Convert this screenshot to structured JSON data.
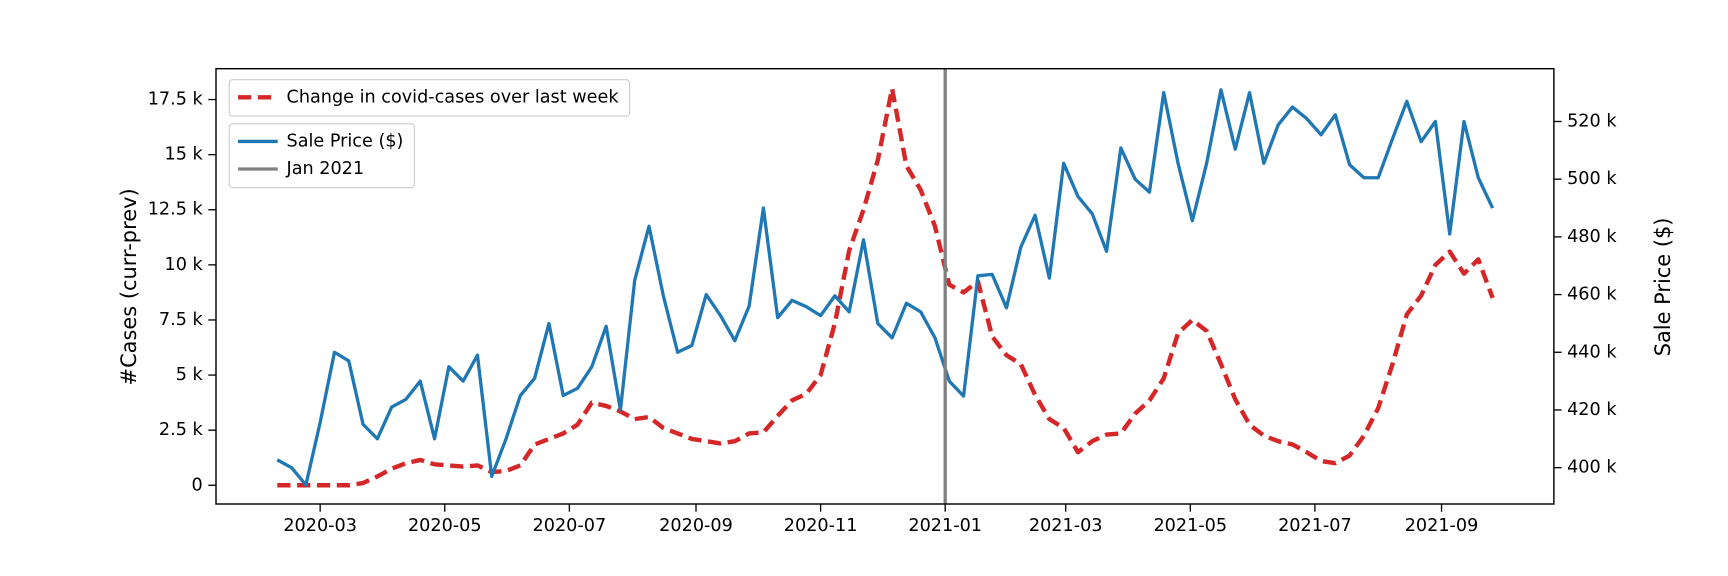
{
  "chart_data": {
    "type": "line",
    "ylabel": "#Cases (curr-prev)",
    "y2label": "Sale Price ($)",
    "x": [
      "2020-02-09",
      "2020-02-16",
      "2020-02-23",
      "2020-03-01",
      "2020-03-08",
      "2020-03-15",
      "2020-03-22",
      "2020-03-29",
      "2020-04-05",
      "2020-04-12",
      "2020-04-19",
      "2020-04-26",
      "2020-05-03",
      "2020-05-10",
      "2020-05-17",
      "2020-05-24",
      "2020-05-31",
      "2020-06-07",
      "2020-06-14",
      "2020-06-21",
      "2020-06-28",
      "2020-07-05",
      "2020-07-12",
      "2020-07-19",
      "2020-07-26",
      "2020-08-02",
      "2020-08-09",
      "2020-08-16",
      "2020-08-23",
      "2020-08-30",
      "2020-09-06",
      "2020-09-13",
      "2020-09-20",
      "2020-09-27",
      "2020-10-04",
      "2020-10-11",
      "2020-10-18",
      "2020-10-25",
      "2020-11-01",
      "2020-11-08",
      "2020-11-15",
      "2020-11-22",
      "2020-11-29",
      "2020-12-06",
      "2020-12-13",
      "2020-12-20",
      "2020-12-27",
      "2021-01-03",
      "2021-01-10",
      "2021-01-17",
      "2021-01-24",
      "2021-01-31",
      "2021-02-07",
      "2021-02-14",
      "2021-02-21",
      "2021-02-28",
      "2021-03-07",
      "2021-03-14",
      "2021-03-21",
      "2021-03-28",
      "2021-04-04",
      "2021-04-11",
      "2021-04-18",
      "2021-04-25",
      "2021-05-02",
      "2021-05-09",
      "2021-05-16",
      "2021-05-23",
      "2021-05-30",
      "2021-06-06",
      "2021-06-13",
      "2021-06-20",
      "2021-06-27",
      "2021-07-04",
      "2021-07-11",
      "2021-07-18",
      "2021-07-25",
      "2021-08-01",
      "2021-08-08",
      "2021-08-15",
      "2021-08-22",
      "2021-08-29",
      "2021-09-05",
      "2021-09-12",
      "2021-09-19",
      "2021-09-26"
    ],
    "xlim": [
      "2020-01-10",
      "2021-10-26"
    ],
    "xticks": [
      "2020-03",
      "2020-05",
      "2020-07",
      "2020-09",
      "2020-11",
      "2021-01",
      "2021-03",
      "2021-05",
      "2021-07",
      "2021-09"
    ],
    "ylim": [
      -850,
      18900
    ],
    "yticks": [
      0,
      {
        "value": 2500,
        "label": "2.5 k"
      },
      {
        "value": 5000,
        "label": "5 k"
      },
      {
        "value": 7500,
        "label": "7.5 k"
      },
      {
        "value": 10000,
        "label": "10 k"
      },
      {
        "value": 12500,
        "label": "12.5 k"
      },
      {
        "value": 15000,
        "label": "15 k"
      },
      {
        "value": 17500,
        "label": "17.5 k"
      }
    ],
    "y2lim": [
      387400,
      538300
    ],
    "y2ticks": [
      {
        "value": 400000,
        "label": "400 k"
      },
      {
        "value": 420000,
        "label": "420 k"
      },
      {
        "value": 440000,
        "label": "440 k"
      },
      {
        "value": 460000,
        "label": "460 k"
      },
      {
        "value": 480000,
        "label": "480 k"
      },
      {
        "value": 500000,
        "label": "500 k"
      },
      {
        "value": 520000,
        "label": "520 k"
      }
    ],
    "legend": "upper left",
    "series": [
      {
        "name": "Change in covid-cases over last week",
        "color": "#d62728",
        "linestyle": "dashed",
        "axis": "y",
        "values": [
          0,
          0,
          0,
          0,
          0,
          0,
          100,
          400,
          750,
          1000,
          1150,
          950,
          900,
          850,
          900,
          600,
          650,
          900,
          1850,
          2100,
          2350,
          2750,
          3750,
          3600,
          3350,
          3000,
          3100,
          2600,
          2350,
          2100,
          2000,
          1900,
          2000,
          2350,
          2400,
          3150,
          3850,
          4150,
          5000,
          7350,
          10650,
          12500,
          14750,
          18000,
          14500,
          13400,
          11750,
          9100,
          8750,
          9250,
          6750,
          5900,
          5500,
          4100,
          3000,
          2600,
          1500,
          2000,
          2300,
          2350,
          3250,
          3850,
          4850,
          6900,
          7500,
          7000,
          5500,
          3900,
          2750,
          2250,
          2000,
          1850,
          1500,
          1100,
          1000,
          1350,
          2250,
          3500,
          5500,
          7750,
          8600,
          10000,
          10600,
          9600,
          10250,
          8500
        ]
      },
      {
        "name": "Sale Price ($)",
        "color": "#1f77b4",
        "linestyle": "solid",
        "axis": "y2",
        "values": [
          402700,
          400000,
          394000,
          415700,
          440000,
          437000,
          415000,
          410000,
          421000,
          423700,
          430000,
          410000,
          435000,
          430000,
          439000,
          397000,
          410000,
          425000,
          431000,
          450000,
          425000,
          427500,
          435000,
          449000,
          420000,
          465000,
          483700,
          459600,
          440000,
          442400,
          460000,
          452700,
          444000,
          456000,
          490000,
          452000,
          458000,
          455800,
          452700,
          459600,
          454000,
          479000,
          450000,
          445000,
          457000,
          454000,
          445000,
          430000,
          424800,
          466500,
          467000,
          455400,
          476400,
          487500,
          465700,
          505500,
          494000,
          488000,
          475000,
          510800,
          500000,
          495500,
          530000,
          505500,
          485600,
          505500,
          531000,
          510400,
          530000,
          505500,
          518800,
          525000,
          521000,
          515400,
          522300,
          505000,
          500500,
          500500,
          514000,
          527000,
          513000,
          520000,
          481000,
          520000,
          500500,
          490000
        ]
      }
    ],
    "vlines": [
      {
        "x": "2021-01-01",
        "name": "Jan 2021",
        "color": "#808080"
      }
    ]
  }
}
